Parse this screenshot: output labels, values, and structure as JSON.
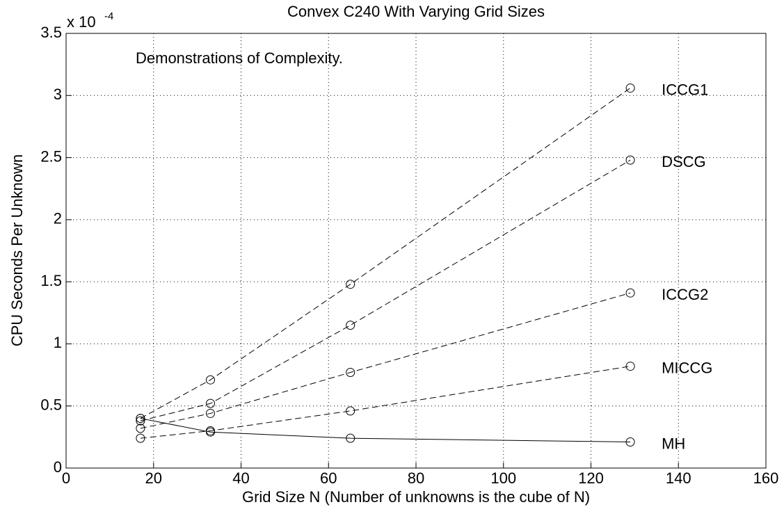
{
  "chart_data": {
    "type": "line",
    "title": "Convex C240 With Varying Grid Sizes",
    "annotation": "Demonstrations of Complexity.",
    "x_label": "Grid Size N  (Number of unknowns is the cube of N)",
    "y_label": "CPU Seconds Per Unknown",
    "y_multiplier": "x 10",
    "y_multiplier_exp": "-4",
    "x": [
      17,
      33,
      65,
      129
    ],
    "series": [
      {
        "name": "ICCG1",
        "color": "#000000",
        "dash": true,
        "values": [
          0.4,
          0.71,
          1.48,
          3.06
        ]
      },
      {
        "name": "DSCG",
        "color": "#000000",
        "dash": true,
        "values": [
          0.38,
          0.52,
          1.15,
          2.48
        ]
      },
      {
        "name": "ICCG2",
        "color": "#000000",
        "dash": true,
        "values": [
          0.32,
          0.44,
          0.77,
          1.41
        ]
      },
      {
        "name": "MICCG",
        "color": "#000000",
        "dash": true,
        "values": [
          0.24,
          0.3,
          0.46,
          0.82
        ]
      },
      {
        "name": "MH",
        "color": "#000000",
        "dash": false,
        "values": [
          0.4,
          0.29,
          0.24,
          0.21
        ]
      }
    ],
    "xlim": [
      0,
      160
    ],
    "xticks": [
      0,
      20,
      40,
      60,
      80,
      100,
      120,
      140,
      160
    ],
    "ylim": [
      0,
      3.5
    ],
    "yticks": [
      0,
      0.5,
      1,
      1.5,
      2,
      2.5,
      3,
      3.5
    ],
    "grid": true
  }
}
